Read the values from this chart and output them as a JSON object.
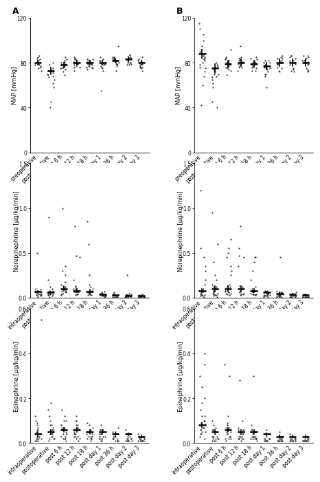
{
  "map_xlabel_A": [
    "preoperative",
    "postoperative",
    "post 6 h",
    "post 12 h",
    "post 18 h",
    "post day 1",
    "post 36 h",
    "post day 2",
    "post day 3"
  ],
  "map_xlabel_B": [
    "preoperative",
    "postoperative",
    "post 6 h",
    "post 12 h",
    "post 18 h",
    "post day 1",
    "post 36 h",
    "post day 2",
    "post day 3"
  ],
  "norepi_xlabel": [
    "intraoperative",
    "postoperative",
    "post 6 h",
    "post 12 h",
    "post 18 h",
    "post day 1",
    "post 36 h",
    "post day 2",
    "post day 3"
  ],
  "epi_xlabel": [
    "intraoperative",
    "postoperative",
    "post 6 h",
    "post 12 h",
    "post 18 h",
    "post day 1",
    "post 36 h",
    "post day 2",
    "post day 3"
  ],
  "map_A_means": [
    80,
    73,
    78,
    80,
    80,
    80,
    82,
    83,
    80
  ],
  "map_A_sems": [
    2,
    3,
    2,
    2,
    2,
    2,
    2,
    2,
    2
  ],
  "map_A_pts": [
    [
      75,
      78,
      80,
      82,
      84,
      86,
      79,
      77,
      73,
      81,
      83,
      85,
      79,
      76,
      78
    ],
    [
      73,
      70,
      68,
      75,
      72,
      65,
      71,
      74,
      62,
      69,
      73,
      67,
      58,
      45,
      40,
      78,
      80
    ],
    [
      78,
      80,
      75,
      82,
      79,
      77,
      83,
      85,
      72,
      76,
      74,
      78,
      81,
      69,
      75,
      80
    ],
    [
      80,
      83,
      78,
      82,
      76,
      81,
      84,
      78,
      79,
      83,
      77,
      80,
      85,
      73,
      79,
      76
    ],
    [
      79,
      82,
      76,
      81,
      78,
      80,
      83,
      77,
      75,
      82,
      79,
      76,
      80,
      83,
      77,
      74
    ],
    [
      79,
      75,
      82,
      78,
      83,
      77,
      80,
      85,
      73,
      79,
      76,
      80,
      82,
      78,
      55
    ],
    [
      82,
      80,
      85,
      78,
      84,
      79,
      83,
      77,
      80,
      85,
      73,
      82,
      79,
      84,
      95
    ],
    [
      83,
      80,
      87,
      78,
      85,
      80,
      84,
      78,
      83,
      87,
      80,
      85,
      79,
      84,
      82
    ],
    [
      79,
      82,
      76,
      81,
      78,
      80,
      75,
      83,
      77,
      80,
      85,
      73,
      79,
      76,
      81
    ]
  ],
  "map_B_means": [
    88,
    75,
    79,
    80,
    79,
    77,
    80,
    80,
    80
  ],
  "map_B_sems": [
    4,
    4,
    3,
    3,
    3,
    3,
    3,
    3,
    3
  ],
  "map_B_pts": [
    [
      88,
      92,
      95,
      85,
      83,
      100,
      78,
      82,
      86,
      75,
      90,
      84,
      76,
      80,
      110,
      72,
      68,
      60,
      42,
      115,
      105
    ],
    [
      73,
      68,
      75,
      70,
      78,
      65,
      72,
      80,
      62,
      76,
      67,
      58,
      45,
      40,
      74,
      70,
      77
    ],
    [
      79,
      83,
      76,
      82,
      80,
      85,
      73,
      77,
      81,
      74,
      78,
      69,
      75,
      80,
      84,
      92
    ],
    [
      80,
      85,
      76,
      82,
      79,
      83,
      77,
      81,
      78,
      84,
      73,
      80,
      76,
      95,
      82
    ],
    [
      79,
      83,
      76,
      81,
      78,
      84,
      73,
      80,
      77,
      82,
      75,
      79,
      85,
      73,
      80
    ],
    [
      76,
      80,
      72,
      78,
      75,
      82,
      70,
      77,
      74,
      80,
      68,
      75,
      70,
      58,
      82
    ],
    [
      80,
      84,
      76,
      82,
      79,
      85,
      73,
      81,
      78,
      84,
      72,
      79,
      86,
      75,
      82
    ],
    [
      80,
      85,
      74,
      82,
      79,
      86,
      73,
      81,
      78,
      84,
      72,
      80,
      86,
      75,
      82
    ],
    [
      80,
      85,
      74,
      82,
      79,
      86,
      73,
      81,
      78,
      84,
      72,
      80,
      86,
      75,
      82
    ]
  ],
  "norepi_A_means": [
    0.07,
    0.06,
    0.1,
    0.08,
    0.07,
    0.04,
    0.03,
    0.02,
    0.02
  ],
  "norepi_A_sems": [
    0.01,
    0.01,
    0.02,
    0.02,
    0.02,
    0.01,
    0.005,
    0.005,
    0.003
  ],
  "norepi_A_pts": [
    [
      0.05,
      0.1,
      0.03,
      0.08,
      0.02,
      0.05,
      0.5,
      0.07,
      0.04,
      0.06,
      0.01,
      0.03,
      0.08,
      0.02,
      0.04,
      0.06,
      0.09
    ],
    [
      0.04,
      0.08,
      0.05,
      0.12,
      0.03,
      0.9,
      0.2,
      0.1,
      0.06,
      0.08,
      0.07,
      0.05,
      0.03,
      0.02,
      0.01,
      0.04,
      0.06
    ],
    [
      0.08,
      0.12,
      0.05,
      0.15,
      0.03,
      1.0,
      0.3,
      0.12,
      0.07,
      0.09,
      0.05,
      0.13,
      0.08,
      0.06,
      0.04,
      0.25,
      0.35,
      0.18
    ],
    [
      0.06,
      0.1,
      0.04,
      0.13,
      0.03,
      0.8,
      0.47,
      0.1,
      0.06,
      0.08,
      0.04,
      0.12,
      0.07,
      0.45,
      0.04,
      0.2
    ],
    [
      0.05,
      0.08,
      0.04,
      0.12,
      0.03,
      0.85,
      0.6,
      0.1,
      0.06,
      0.08,
      0.04,
      0.15,
      0.07,
      0.05,
      0.03,
      0.25
    ],
    [
      0.02,
      0.04,
      0.02,
      0.06,
      0.01,
      0.02,
      0.03,
      0.05,
      0.07,
      0.03,
      0.02,
      0.04,
      0.01,
      0.03,
      0.02,
      0.04
    ],
    [
      0.01,
      0.03,
      0.02,
      0.05,
      0.01,
      0.02,
      0.03,
      0.04,
      0.06,
      0.02,
      0.01,
      0.03,
      0.01,
      0.02,
      0.02,
      0.03
    ],
    [
      0.01,
      0.02,
      0.01,
      0.04,
      0.01,
      0.02,
      0.25,
      0.04,
      0.05,
      0.02,
      0.01,
      0.03,
      0.01,
      0.02,
      0.02,
      0.03
    ],
    [
      0.01,
      0.02,
      0.01,
      0.03,
      0.01,
      0.01,
      0.02,
      0.03,
      0.04,
      0.01,
      0.01,
      0.02,
      0.01,
      0.01,
      0.01,
      0.02
    ]
  ],
  "norepi_B_means": [
    0.08,
    0.1,
    0.1,
    0.1,
    0.08,
    0.06,
    0.05,
    0.04,
    0.03
  ],
  "norepi_B_sems": [
    0.02,
    0.03,
    0.03,
    0.03,
    0.02,
    0.01,
    0.01,
    0.01,
    0.01
  ],
  "norepi_B_pts": [
    [
      0.05,
      0.1,
      0.03,
      0.08,
      0.02,
      0.55,
      0.07,
      0.04,
      0.06,
      0.01,
      0.03,
      0.08,
      0.02,
      0.04,
      0.45,
      0.3,
      0.2,
      0.15,
      1.2,
      0.35
    ],
    [
      0.08,
      0.15,
      0.05,
      0.12,
      0.03,
      0.95,
      0.2,
      0.1,
      0.06,
      0.08,
      0.04,
      0.12,
      0.07,
      0.05,
      0.03,
      0.02,
      0.01,
      0.4,
      0.25,
      0.6
    ],
    [
      0.06,
      0.12,
      0.05,
      0.15,
      0.03,
      0.65,
      0.3,
      0.12,
      0.07,
      0.09,
      0.05,
      0.13,
      0.08,
      0.06,
      0.04,
      0.25,
      0.35,
      0.5,
      0.45,
      0.55
    ],
    [
      0.05,
      0.1,
      0.04,
      0.13,
      0.03,
      0.8,
      0.47,
      0.1,
      0.06,
      0.08,
      0.04,
      0.12,
      0.07,
      0.45,
      0.04,
      0.35,
      0.55
    ],
    [
      0.04,
      0.08,
      0.04,
      0.12,
      0.03,
      0.45,
      0.45,
      0.1,
      0.06,
      0.08,
      0.04,
      0.4,
      0.07,
      0.05,
      0.03,
      0.2,
      0.3
    ],
    [
      0.03,
      0.06,
      0.02,
      0.07,
      0.01,
      0.02,
      0.05,
      0.06,
      0.08,
      0.03,
      0.02,
      0.04,
      0.01,
      0.03,
      0.02,
      0.05,
      0.08
    ],
    [
      0.02,
      0.04,
      0.02,
      0.06,
      0.01,
      0.02,
      0.04,
      0.05,
      0.07,
      0.02,
      0.01,
      0.04,
      0.01,
      0.02,
      0.02,
      0.04,
      0.06,
      0.45
    ],
    [
      0.01,
      0.03,
      0.01,
      0.05,
      0.01,
      0.02,
      0.03,
      0.04,
      0.06,
      0.02,
      0.01,
      0.03,
      0.01,
      0.02,
      0.02,
      0.04
    ],
    [
      0.01,
      0.02,
      0.01,
      0.04,
      0.01,
      0.01,
      0.02,
      0.03,
      0.04,
      0.01,
      0.01,
      0.02,
      0.01,
      0.01,
      0.01,
      0.03
    ]
  ],
  "epi_A_means": [
    0.04,
    0.05,
    0.06,
    0.06,
    0.05,
    0.05,
    0.04,
    0.04,
    0.03
  ],
  "epi_A_sems": [
    0.01,
    0.01,
    0.01,
    0.01,
    0.01,
    0.01,
    0.005,
    0.005,
    0.005
  ],
  "epi_A_pts": [
    [
      0.03,
      0.05,
      0.02,
      0.06,
      0.01,
      0.03,
      0.55,
      0.04,
      0.02,
      0.03,
      0.01,
      0.02,
      0.04,
      0.01,
      0.02,
      0.07,
      0.09,
      0.06,
      0.08,
      0.04,
      0.1,
      0.12
    ],
    [
      0.04,
      0.08,
      0.03,
      0.06,
      0.02,
      0.1,
      0.06,
      0.04,
      0.05,
      0.02,
      0.06,
      0.04,
      0.03,
      0.02,
      0.01,
      0.15,
      0.12,
      0.08,
      0.18,
      0.07
    ],
    [
      0.04,
      0.08,
      0.03,
      0.07,
      0.02,
      0.1,
      0.06,
      0.04,
      0.04,
      0.02,
      0.06,
      0.03,
      0.02,
      0.01,
      0.08,
      0.1,
      0.12,
      0.07,
      0.15,
      0.05
    ],
    [
      0.04,
      0.08,
      0.03,
      0.07,
      0.02,
      0.1,
      0.06,
      0.04,
      0.04,
      0.02,
      0.06,
      0.03,
      0.03,
      0.01,
      0.08,
      0.1,
      0.12,
      0.07,
      0.05
    ],
    [
      0.03,
      0.06,
      0.02,
      0.06,
      0.02,
      0.08,
      0.05,
      0.03,
      0.04,
      0.02,
      0.05,
      0.03,
      0.02,
      0.01,
      0.07,
      0.09,
      0.04
    ],
    [
      0.03,
      0.06,
      0.02,
      0.05,
      0.01,
      0.06,
      0.04,
      0.03,
      0.03,
      0.02,
      0.04,
      0.02,
      0.02,
      0.01,
      0.06,
      0.08,
      0.04
    ],
    [
      0.02,
      0.04,
      0.02,
      0.04,
      0.01,
      0.05,
      0.03,
      0.02,
      0.03,
      0.01,
      0.03,
      0.02,
      0.01,
      0.01,
      0.05,
      0.07,
      0.03
    ],
    [
      0.02,
      0.04,
      0.01,
      0.04,
      0.01,
      0.04,
      0.03,
      0.02,
      0.02,
      0.01,
      0.03,
      0.01,
      0.01,
      0.01,
      0.04,
      0.06,
      0.02
    ],
    [
      0.01,
      0.03,
      0.01,
      0.03,
      0.01,
      0.03,
      0.02,
      0.01,
      0.02,
      0.01,
      0.02,
      0.01,
      0.01,
      0.01,
      0.02,
      0.04,
      0.02
    ]
  ],
  "epi_B_means": [
    0.08,
    0.05,
    0.06,
    0.05,
    0.05,
    0.04,
    0.03,
    0.03,
    0.03
  ],
  "epi_B_sems": [
    0.01,
    0.01,
    0.01,
    0.01,
    0.01,
    0.005,
    0.005,
    0.005,
    0.005
  ],
  "epi_B_pts": [
    [
      0.06,
      0.1,
      0.05,
      0.08,
      0.04,
      0.35,
      0.12,
      0.08,
      0.09,
      0.05,
      0.1,
      0.07,
      0.06,
      0.04,
      0.03,
      0.02,
      0.15,
      0.18,
      0.12,
      0.07,
      0.4,
      0.3,
      0.25,
      0.2
    ],
    [
      0.03,
      0.06,
      0.02,
      0.05,
      0.01,
      0.05,
      0.03,
      0.02,
      0.03,
      0.01,
      0.03,
      0.02,
      0.02,
      0.01,
      0.06,
      0.08,
      0.04,
      0.1,
      0.07
    ],
    [
      0.04,
      0.08,
      0.03,
      0.07,
      0.02,
      0.08,
      0.05,
      0.03,
      0.04,
      0.02,
      0.05,
      0.03,
      0.02,
      0.01,
      0.07,
      0.09,
      0.3,
      0.12,
      0.06,
      0.35
    ],
    [
      0.03,
      0.06,
      0.02,
      0.06,
      0.02,
      0.06,
      0.04,
      0.03,
      0.03,
      0.02,
      0.04,
      0.02,
      0.02,
      0.01,
      0.05,
      0.07,
      0.28,
      0.1,
      0.04
    ],
    [
      0.03,
      0.06,
      0.02,
      0.05,
      0.02,
      0.05,
      0.03,
      0.02,
      0.03,
      0.02,
      0.03,
      0.02,
      0.02,
      0.01,
      0.05,
      0.06,
      0.3,
      0.08,
      0.04
    ],
    [
      0.02,
      0.04,
      0.01,
      0.04,
      0.01,
      0.04,
      0.02,
      0.02,
      0.02,
      0.01,
      0.02,
      0.01,
      0.01,
      0.01,
      0.04,
      0.06,
      0.03
    ],
    [
      0.01,
      0.03,
      0.01,
      0.03,
      0.01,
      0.03,
      0.02,
      0.01,
      0.02,
      0.01,
      0.02,
      0.01,
      0.01,
      0.01,
      0.03,
      0.05,
      0.02
    ],
    [
      0.01,
      0.03,
      0.01,
      0.03,
      0.01,
      0.02,
      0.02,
      0.01,
      0.02,
      0.01,
      0.02,
      0.01,
      0.01,
      0.01,
      0.02,
      0.04,
      0.02
    ],
    [
      0.01,
      0.02,
      0.01,
      0.02,
      0.01,
      0.02,
      0.01,
      0.01,
      0.01,
      0.01,
      0.01,
      0.01,
      0.01,
      0.01,
      0.02,
      0.03,
      0.01
    ]
  ],
  "map_ylim": [
    0,
    120
  ],
  "map_yticks": [
    0,
    40,
    80,
    120
  ],
  "norepi_ylim": [
    0,
    1.5
  ],
  "norepi_yticks": [
    0.0,
    0.5,
    1.0,
    1.5
  ],
  "epi_ylim": [
    0,
    0.6
  ],
  "epi_yticks": [
    0.0,
    0.2,
    0.4,
    0.6
  ],
  "dot_color": "#333333",
  "dot_size": 2.5,
  "mean_line_color": "#000000",
  "mean_linewidth": 1.8,
  "sem_linewidth": 1.2
}
